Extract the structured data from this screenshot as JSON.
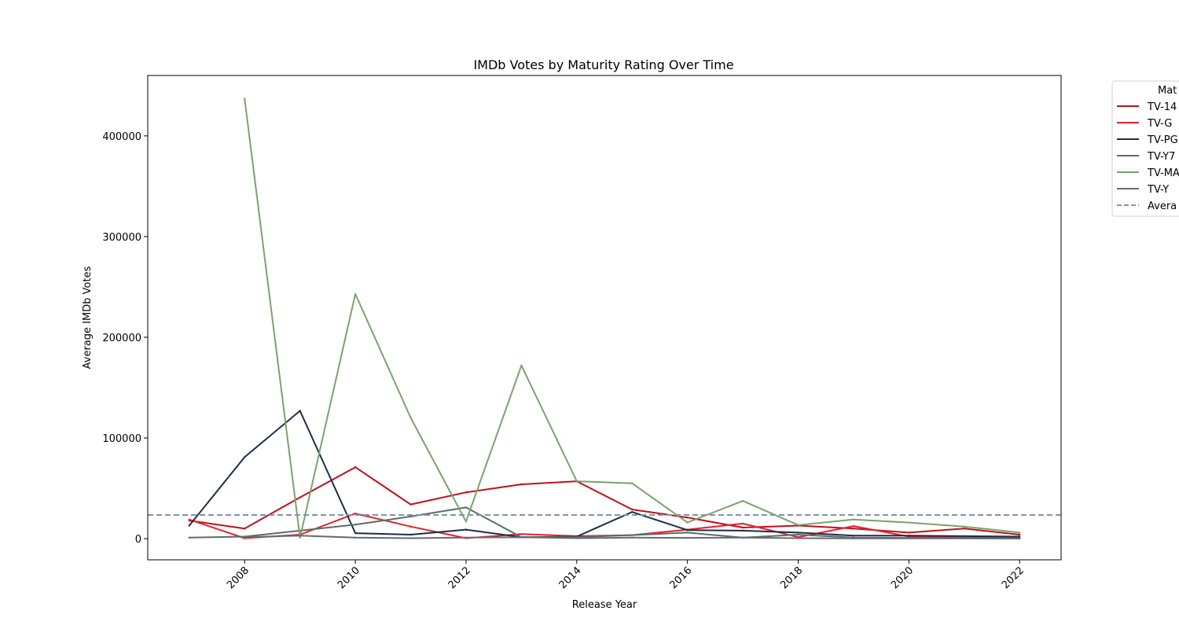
{
  "chart_data": {
    "type": "line",
    "title": "IMDb Votes by Maturity Rating Over Time",
    "xlabel": "Release Year",
    "ylabel": "Average IMDb Votes",
    "xlim": [
      2006.25,
      2022.75
    ],
    "ylim": [
      -21000,
      460000
    ],
    "xticks": [
      2008,
      2010,
      2012,
      2014,
      2016,
      2018,
      2020,
      2022
    ],
    "yticks": [
      0,
      100000,
      200000,
      300000,
      400000
    ],
    "grid": false,
    "legend": {
      "title": "Mat",
      "placement": "outside-top-right",
      "average_label": "Avera"
    },
    "average_line": {
      "value": 23500,
      "color": "#8293ab"
    },
    "x": [
      2007,
      2008,
      2009,
      2010,
      2011,
      2012,
      2013,
      2014,
      2015,
      2016,
      2017,
      2018,
      2019,
      2020,
      2021,
      2022
    ],
    "series": [
      {
        "name": "TV-14",
        "color": "#c0101c",
        "values": [
          18000,
          10000,
          41000,
          71000,
          34000,
          46000,
          54000,
          57000,
          29000,
          21000,
          11000,
          13000,
          10000,
          6000,
          10000,
          4000
        ]
      },
      {
        "name": "TV-G",
        "color": "#e8202a",
        "values": [
          19000,
          500,
          4000,
          25000,
          12000,
          500,
          4500,
          2500,
          3500,
          9000,
          15000,
          1500,
          12500,
          2000,
          1000,
          800
        ]
      },
      {
        "name": "TV-PG",
        "color": "#1e2d45",
        "values": [
          13000,
          81000,
          127000,
          5500,
          4000,
          9000,
          1500,
          2000,
          26500,
          8500,
          8000,
          6000,
          3000,
          3000,
          2500,
          2000
        ]
      },
      {
        "name": "TV-Y7",
        "color": "#5a6e68",
        "values": [
          1000,
          2000,
          8000,
          14000,
          22000,
          31000,
          1500,
          1500,
          3500,
          6000,
          1000,
          4000,
          1000,
          800,
          500,
          300
        ]
      },
      {
        "name": "TV-MA",
        "color": "#7aa36c",
        "values": [
          null,
          437000,
          1000,
          243000,
          120000,
          17000,
          172000,
          57000,
          55000,
          16000,
          37500,
          13500,
          19000,
          16000,
          12000,
          6000
        ]
      },
      {
        "name": "TV-Y",
        "color": "#666a77",
        "values": [
          null,
          1500,
          3000,
          1000,
          500,
          1000,
          1500,
          500,
          1000,
          800,
          1000,
          500,
          300,
          300,
          200,
          100
        ]
      }
    ]
  }
}
